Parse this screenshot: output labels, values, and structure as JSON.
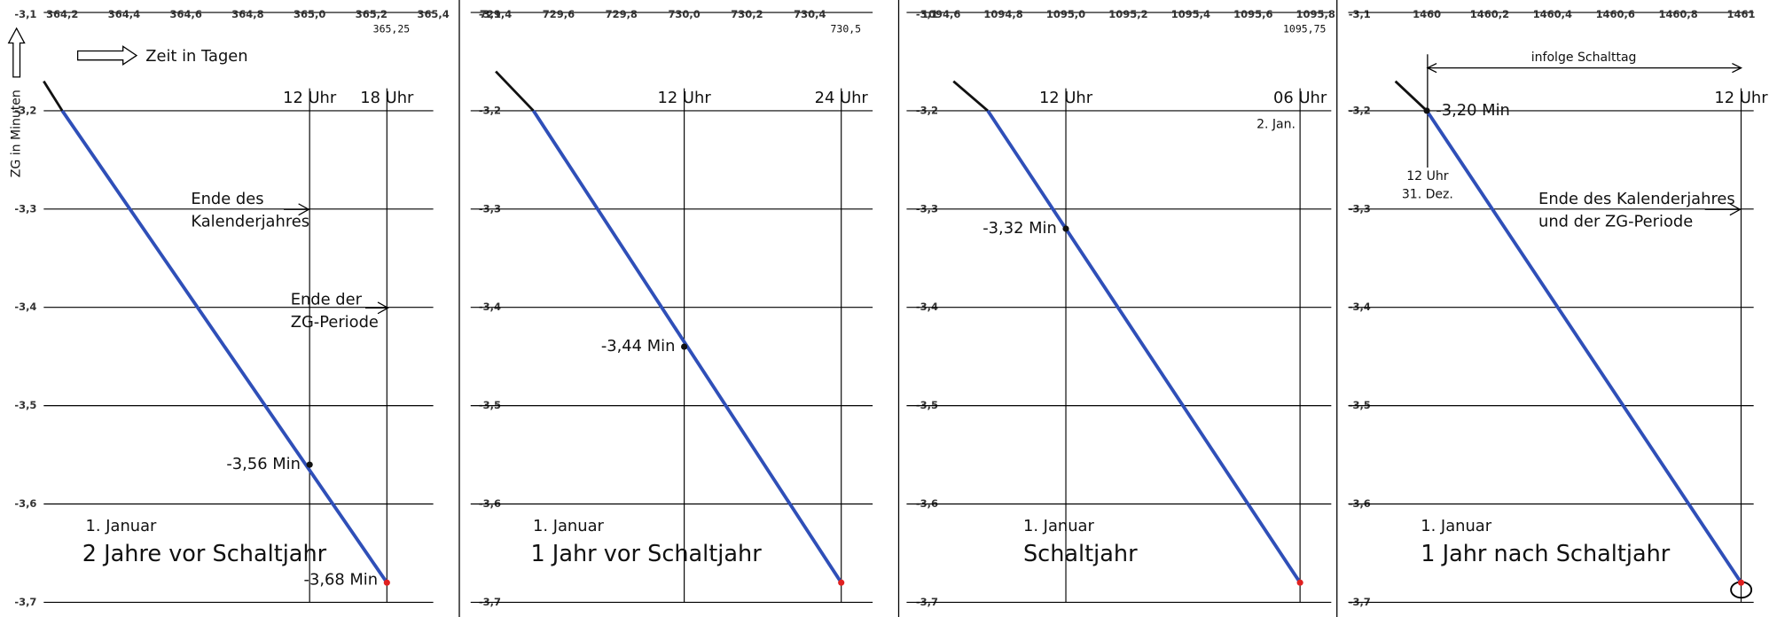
{
  "chart_data": [
    {
      "type": "line",
      "xlabel": "Zeit in Tagen",
      "ylabel": "ZG in Minuten",
      "grid": true,
      "xlim": [
        364.14,
        365.4
      ],
      "xticks": [
        {
          "value": 364.2,
          "label": "364,2"
        },
        {
          "value": 364.4,
          "label": "364,4"
        },
        {
          "value": 364.6,
          "label": "364,6"
        },
        {
          "value": 364.8,
          "label": "364,8"
        },
        {
          "value": 365.0,
          "label": "365,0"
        },
        {
          "value": 365.2,
          "label": "365,2"
        },
        {
          "value": 365.4,
          "label": "365,4"
        }
      ],
      "ylim": [
        -3.7,
        -3.1
      ],
      "yticks": [
        {
          "value": -3.1,
          "label": "-3,1"
        },
        {
          "value": -3.2,
          "label": "-3,2"
        },
        {
          "value": -3.3,
          "label": "-3,3"
        },
        {
          "value": -3.4,
          "label": "-3,4"
        },
        {
          "value": -3.5,
          "label": "-3,5"
        },
        {
          "value": -3.6,
          "label": "-3,6"
        },
        {
          "value": -3.7,
          "label": "-3,7"
        }
      ],
      "series": [
        {
          "color": "#111111",
          "x": [
            364.14,
            364.2
          ],
          "values": [
            -3.17,
            -3.2
          ]
        },
        {
          "color": "#2f4fb8",
          "x": [
            364.2,
            365.25
          ],
          "values": [
            -3.2,
            -3.68
          ]
        }
      ],
      "vlines": [
        {
          "x": 365.0,
          "label": "12 Uhr"
        },
        {
          "x": 365.25,
          "label": "18 Uhr",
          "tick_label": "365,25"
        }
      ],
      "points": [
        {
          "x": 365.0,
          "y": -3.56,
          "label": "-3,56 Min",
          "color": "#111111"
        },
        {
          "x": 365.25,
          "y": -3.68,
          "label": "-3,68 Min",
          "color": "#e02020"
        }
      ],
      "date": "1. Januar",
      "subtitle": "2 Jahre vor Schaltjahr",
      "annotations": [
        "Ende des",
        "Kalenderjahres",
        "Ende der",
        "ZG-Periode"
      ]
    },
    {
      "type": "line",
      "grid": true,
      "xlim": [
        729.32,
        730.6
      ],
      "xticks": [
        {
          "value": 729.4,
          "label": "729,4"
        },
        {
          "value": 729.6,
          "label": "729,6"
        },
        {
          "value": 729.8,
          "label": "729,8"
        },
        {
          "value": 730.0,
          "label": "730,0"
        },
        {
          "value": 730.2,
          "label": "730,2"
        },
        {
          "value": 730.4,
          "label": "730,4"
        }
      ],
      "ylim": [
        -3.7,
        -3.1
      ],
      "yticks": [
        {
          "value": -3.1,
          "label": "-3,1"
        },
        {
          "value": -3.2,
          "label": "-3,2"
        },
        {
          "value": -3.3,
          "label": "-3,3"
        },
        {
          "value": -3.4,
          "label": "-3,4"
        },
        {
          "value": -3.5,
          "label": "-3,5"
        },
        {
          "value": -3.6,
          "label": "-3,6"
        },
        {
          "value": -3.7,
          "label": "-3,7"
        }
      ],
      "series": [
        {
          "color": "#111111",
          "x": [
            729.4,
            729.52
          ],
          "values": [
            -3.16,
            -3.2
          ]
        },
        {
          "color": "#2f4fb8",
          "x": [
            729.52,
            730.5
          ],
          "values": [
            -3.2,
            -3.68
          ]
        }
      ],
      "vlines": [
        {
          "x": 730.0,
          "label": "12 Uhr"
        },
        {
          "x": 730.5,
          "label": "24 Uhr",
          "tick_label": "730,5"
        }
      ],
      "points": [
        {
          "x": 730.0,
          "y": -3.44,
          "label": "-3,44 Min",
          "color": "#111111"
        },
        {
          "x": 730.5,
          "y": -3.68,
          "color": "#e02020"
        }
      ],
      "date": "1. Januar",
      "subtitle": "1 Jahr vor Schaltjahr",
      "annotations": []
    },
    {
      "type": "line",
      "grid": true,
      "xlim": [
        1094.49,
        1095.85
      ],
      "xticks": [
        {
          "value": 1094.6,
          "label": "1094,6"
        },
        {
          "value": 1094.8,
          "label": "1094,8"
        },
        {
          "value": 1095.0,
          "label": "1095,0"
        },
        {
          "value": 1095.2,
          "label": "1095,2"
        },
        {
          "value": 1095.4,
          "label": "1095,4"
        },
        {
          "value": 1095.6,
          "label": "1095,6"
        },
        {
          "value": 1095.8,
          "label": "1095,8"
        }
      ],
      "ylim": [
        -3.7,
        -3.1
      ],
      "yticks": [
        {
          "value": -3.1,
          "label": "-3,1"
        },
        {
          "value": -3.2,
          "label": "-3,2"
        },
        {
          "value": -3.3,
          "label": "-3,3"
        },
        {
          "value": -3.4,
          "label": "-3,4"
        },
        {
          "value": -3.5,
          "label": "-3,5"
        },
        {
          "value": -3.6,
          "label": "-3,6"
        },
        {
          "value": -3.7,
          "label": "-3,7"
        }
      ],
      "series": [
        {
          "color": "#111111",
          "x": [
            1094.64,
            1094.75
          ],
          "values": [
            -3.17,
            -3.2
          ]
        },
        {
          "color": "#2f4fb8",
          "x": [
            1094.75,
            1095.75
          ],
          "values": [
            -3.2,
            -3.68
          ]
        }
      ],
      "vlines": [
        {
          "x": 1095.0,
          "label": "12 Uhr"
        },
        {
          "x": 1095.75,
          "label": "06 Uhr",
          "tick_label": "1095,75",
          "note": "2. Jan."
        }
      ],
      "points": [
        {
          "x": 1095.0,
          "y": -3.32,
          "label": "-3,32 Min",
          "color": "#111111"
        },
        {
          "x": 1095.75,
          "y": -3.68,
          "color": "#e02020"
        }
      ],
      "date": "1. Januar",
      "subtitle": "Schaltjahr",
      "annotations": []
    },
    {
      "type": "line",
      "grid": true,
      "xlim": [
        1459.75,
        1461.04
      ],
      "xticks": [
        1460,
        {
          "value": 1460.2,
          "label": "1460,2"
        },
        {
          "value": 1460.4,
          "label": "1460,4"
        },
        {
          "value": 1460.6,
          "label": "1460,6"
        },
        {
          "value": 1460.8,
          "label": "1460,8"
        },
        1461
      ],
      "ylim": [
        -3.7,
        -3.1
      ],
      "yticks": [
        {
          "value": -3.1,
          "label": "-3,1"
        },
        {
          "value": -3.2,
          "label": "-3,2"
        },
        {
          "value": -3.3,
          "label": "-3,3"
        },
        {
          "value": -3.4,
          "label": "-3,4"
        },
        {
          "value": -3.5,
          "label": "-3,5"
        },
        {
          "value": -3.6,
          "label": "-3,6"
        },
        {
          "value": -3.7,
          "label": "-3,7"
        }
      ],
      "series": [
        {
          "color": "#111111",
          "x": [
            1459.9,
            1460
          ],
          "values": [
            -3.17,
            -3.2
          ]
        },
        {
          "color": "#2f4fb8",
          "x": [
            1460,
            1461
          ],
          "values": [
            -3.2,
            -3.68
          ]
        }
      ],
      "vlines": [
        {
          "x": 1461,
          "label": "12 Uhr"
        }
      ],
      "points": [
        {
          "x": 1460,
          "y": -3.2,
          "label": "-3,20 Min",
          "color": "#111111"
        },
        {
          "x": 1461,
          "y": -3.68,
          "color": "#e02020"
        }
      ],
      "date": "1. Januar",
      "subtitle": "1 Jahr nach Schaltjahr",
      "annotations": [
        "infolge Schalttag",
        "12 Uhr",
        "31. Dez.",
        "Ende des Kalenderjahres",
        "und der ZG-Periode"
      ]
    }
  ]
}
